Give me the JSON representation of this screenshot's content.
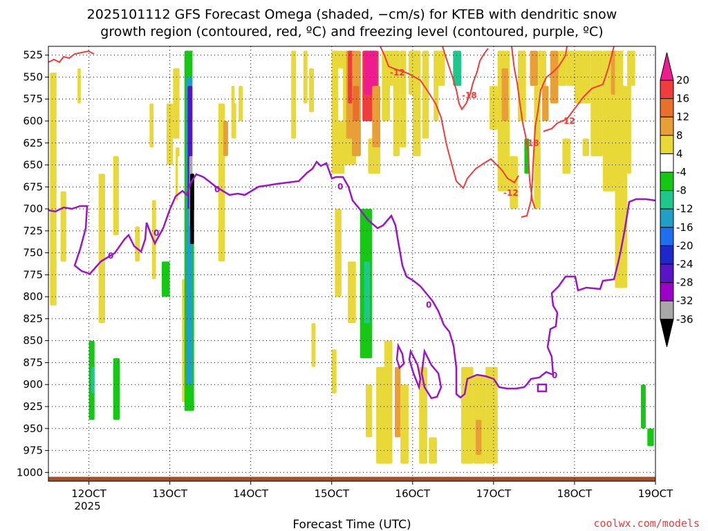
{
  "chart_data": {
    "type": "heatmap",
    "title_lines": [
      "2025101112 GFS Forecast Omega (shaded, −cm/s) for KTEB with dendritic snow",
      "growth region (contoured, red, ºC) and freezing level (contoured, purple, ºC)"
    ],
    "xlabel": "Forecast Time (UTC)",
    "credit": "coolwx.com/models",
    "x_ticks": [
      {
        "label": "12OCT",
        "sub": "2025",
        "value": 12
      },
      {
        "label": "13OCT",
        "sub": "",
        "value": 13
      },
      {
        "label": "14OCT",
        "sub": "",
        "value": 14
      },
      {
        "label": "15OCT",
        "sub": "",
        "value": 15
      },
      {
        "label": "16OCT",
        "sub": "",
        "value": 16
      },
      {
        "label": "17OCT",
        "sub": "",
        "value": 17
      },
      {
        "label": "18OCT",
        "sub": "",
        "value": 18
      },
      {
        "label": "19OCT",
        "sub": "",
        "value": 19
      }
    ],
    "x_range": [
      11.5,
      19.0
    ],
    "y_ticks": [
      "525",
      "550",
      "575",
      "600",
      "625",
      "650",
      "675",
      "700",
      "725",
      "750",
      "775",
      "800",
      "825",
      "850",
      "875",
      "900",
      "925",
      "950",
      "975",
      "1000"
    ],
    "y_range": [
      1010,
      515
    ],
    "colorbar": {
      "labels": [
        "20",
        "16",
        "12",
        "8",
        "4",
        "-4",
        "-8",
        "-12",
        "-16",
        "-20",
        "-24",
        "-28",
        "-32",
        "-36"
      ],
      "colors": [
        "#ee1c8e",
        "#f03c3c",
        "#e8702a",
        "#e8a036",
        "#e8d838",
        "#ffffff",
        "#14c814",
        "#1ec88c",
        "#1ea0c8",
        "#1e6ef0",
        "#1e28c8",
        "#5a14c8",
        "#9c00c8",
        "#a8a8a8",
        "#000000"
      ]
    },
    "contours": {
      "freezing_level_label": "0",
      "dgz_labels": [
        "-12",
        "-18"
      ]
    },
    "shaded_cells": [
      {
        "x0": 11.52,
        "x1": 11.62,
        "p0": 545,
        "p1": 810,
        "c": 4
      },
      {
        "x0": 11.6,
        "x1": 11.7,
        "p0": 540,
        "p1": 880,
        "c": 5
      },
      {
        "x0": 11.65,
        "x1": 11.72,
        "p0": 680,
        "p1": 760,
        "c": 4
      },
      {
        "x0": 11.8,
        "x1": 11.87,
        "p0": 540,
        "p1": 620,
        "c": 5
      },
      {
        "x0": 11.86,
        "x1": 11.9,
        "p0": 540,
        "p1": 580,
        "c": 4
      },
      {
        "x0": 11.92,
        "x1": 11.98,
        "p0": 560,
        "p1": 720,
        "c": 5
      },
      {
        "x0": 11.95,
        "x1": 12.07,
        "p0": 780,
        "p1": 980,
        "c": 5
      },
      {
        "x0": 12.0,
        "x1": 12.07,
        "p0": 850,
        "p1": 940,
        "c": 6
      },
      {
        "x0": 12.03,
        "x1": 12.07,
        "p0": 880,
        "p1": 910,
        "c": 7
      },
      {
        "x0": 12.1,
        "x1": 12.17,
        "p0": 520,
        "p1": 620,
        "c": 5
      },
      {
        "x0": 12.12,
        "x1": 12.2,
        "p0": 660,
        "p1": 830,
        "c": 4
      },
      {
        "x0": 12.22,
        "x1": 12.27,
        "p0": 520,
        "p1": 560,
        "c": 5
      },
      {
        "x0": 12.3,
        "x1": 12.37,
        "p0": 640,
        "p1": 730,
        "c": 4
      },
      {
        "x0": 12.3,
        "x1": 12.4,
        "p0": 760,
        "p1": 980,
        "c": 5
      },
      {
        "x0": 12.3,
        "x1": 12.38,
        "p0": 870,
        "p1": 940,
        "c": 6
      },
      {
        "x0": 12.37,
        "x1": 12.44,
        "p0": 520,
        "p1": 620,
        "c": 5
      },
      {
        "x0": 12.48,
        "x1": 12.56,
        "p0": 600,
        "p1": 650,
        "c": 5
      },
      {
        "x0": 12.56,
        "x1": 12.62,
        "p0": 520,
        "p1": 560,
        "c": 5
      },
      {
        "x0": 12.57,
        "x1": 12.63,
        "p0": 720,
        "p1": 760,
        "c": 4
      },
      {
        "x0": 12.6,
        "x1": 12.67,
        "p0": 520,
        "p1": 610,
        "c": 5
      },
      {
        "x0": 12.67,
        "x1": 12.73,
        "p0": 520,
        "p1": 580,
        "c": 5
      },
      {
        "x0": 12.6,
        "x1": 12.7,
        "p0": 680,
        "p1": 720,
        "c": 5
      },
      {
        "x0": 12.7,
        "x1": 12.76,
        "p0": 560,
        "p1": 700,
        "c": 5
      },
      {
        "x0": 12.75,
        "x1": 12.8,
        "p0": 580,
        "p1": 630,
        "c": 4
      },
      {
        "x0": 12.78,
        "x1": 12.83,
        "p0": 690,
        "p1": 780,
        "c": 4
      },
      {
        "x0": 12.8,
        "x1": 12.86,
        "p0": 560,
        "p1": 620,
        "c": 5
      },
      {
        "x0": 12.86,
        "x1": 12.92,
        "p0": 610,
        "p1": 640,
        "c": 5
      },
      {
        "x0": 12.92,
        "x1": 12.98,
        "p0": 670,
        "p1": 730,
        "c": 5
      },
      {
        "x0": 12.83,
        "x1": 13.05,
        "p0": 740,
        "p1": 910,
        "c": 5
      },
      {
        "x0": 12.9,
        "x1": 13.0,
        "p0": 760,
        "p1": 800,
        "c": 6
      },
      {
        "x0": 12.96,
        "x1": 13.04,
        "p0": 580,
        "p1": 650,
        "c": 4
      },
      {
        "x0": 12.95,
        "x1": 13.05,
        "p0": 870,
        "p1": 950,
        "c": 5
      },
      {
        "x0": 13.04,
        "x1": 13.12,
        "p0": 540,
        "p1": 620,
        "c": 4
      },
      {
        "x0": 13.07,
        "x1": 13.14,
        "p0": 630,
        "p1": 690,
        "c": 4
      },
      {
        "x0": 13.1,
        "x1": 13.2,
        "p0": 640,
        "p1": 700,
        "c": 5
      },
      {
        "x0": 13.12,
        "x1": 13.22,
        "p0": 560,
        "p1": 640,
        "c": 5
      },
      {
        "x0": 13.15,
        "x1": 13.26,
        "p0": 650,
        "p1": 770,
        "c": 5
      },
      {
        "x0": 13.15,
        "x1": 13.2,
        "p0": 520,
        "p1": 580,
        "c": 5
      },
      {
        "x0": 13.15,
        "x1": 13.26,
        "p0": 780,
        "p1": 920,
        "c": 4
      },
      {
        "x0": 13.18,
        "x1": 13.3,
        "p0": 520,
        "p1": 930,
        "c": 6
      },
      {
        "x0": 13.2,
        "x1": 13.28,
        "p0": 550,
        "p1": 900,
        "c": 8
      },
      {
        "x0": 13.22,
        "x1": 13.28,
        "p0": 560,
        "p1": 700,
        "c": 11
      },
      {
        "x0": 13.24,
        "x1": 13.3,
        "p0": 640,
        "p1": 720,
        "c": 13
      },
      {
        "x0": 13.25,
        "x1": 13.3,
        "p0": 660,
        "p1": 740,
        "c": 14
      },
      {
        "x0": 13.28,
        "x1": 13.36,
        "p0": 520,
        "p1": 660,
        "c": 5
      },
      {
        "x0": 13.3,
        "x1": 13.4,
        "p0": 700,
        "p1": 920,
        "c": 5
      },
      {
        "x0": 13.37,
        "x1": 13.45,
        "p0": 560,
        "p1": 660,
        "c": 5
      },
      {
        "x0": 13.44,
        "x1": 13.5,
        "p0": 600,
        "p1": 650,
        "c": 5
      },
      {
        "x0": 13.5,
        "x1": 13.56,
        "p0": 620,
        "p1": 700,
        "c": 5
      },
      {
        "x0": 13.52,
        "x1": 13.6,
        "p0": 730,
        "p1": 780,
        "c": 5
      },
      {
        "x0": 13.55,
        "x1": 13.62,
        "p0": 520,
        "p1": 580,
        "c": 5
      },
      {
        "x0": 13.58,
        "x1": 13.64,
        "p0": 660,
        "p1": 800,
        "c": 5
      },
      {
        "x0": 13.6,
        "x1": 13.68,
        "p0": 580,
        "p1": 760,
        "c": 4
      },
      {
        "x0": 13.62,
        "x1": 13.7,
        "p0": 540,
        "p1": 580,
        "c": 5
      },
      {
        "x0": 13.66,
        "x1": 13.72,
        "p0": 600,
        "p1": 640,
        "c": 3
      },
      {
        "x0": 13.7,
        "x1": 13.78,
        "p0": 640,
        "p1": 760,
        "c": 5
      },
      {
        "x0": 13.74,
        "x1": 13.82,
        "p0": 640,
        "p1": 850,
        "c": 5
      },
      {
        "x0": 13.76,
        "x1": 13.82,
        "p0": 560,
        "p1": 620,
        "c": 4
      },
      {
        "x0": 13.8,
        "x1": 13.86,
        "p0": 540,
        "p1": 580,
        "c": 5
      },
      {
        "x0": 13.85,
        "x1": 13.9,
        "p0": 560,
        "p1": 600,
        "c": 4
      },
      {
        "x0": 14.2,
        "x1": 14.26,
        "p0": 540,
        "p1": 580,
        "c": 5
      },
      {
        "x0": 14.5,
        "x1": 14.56,
        "p0": 520,
        "p1": 620,
        "c": 4
      },
      {
        "x0": 14.65,
        "x1": 14.7,
        "p0": 520,
        "p1": 580,
        "c": 4
      },
      {
        "x0": 14.72,
        "x1": 14.78,
        "p0": 540,
        "p1": 590,
        "c": 4
      },
      {
        "x0": 14.75,
        "x1": 14.8,
        "p0": 830,
        "p1": 880,
        "c": 4
      },
      {
        "x0": 15.0,
        "x1": 15.06,
        "p0": 860,
        "p1": 910,
        "c": 4
      },
      {
        "x0": 15.0,
        "x1": 15.16,
        "p0": 520,
        "p1": 660,
        "c": 4
      },
      {
        "x0": 15.04,
        "x1": 15.12,
        "p0": 700,
        "p1": 800,
        "c": 4
      },
      {
        "x0": 15.08,
        "x1": 15.14,
        "p0": 540,
        "p1": 600,
        "c": 5
      },
      {
        "x0": 15.15,
        "x1": 15.3,
        "p0": 520,
        "p1": 650,
        "c": 4
      },
      {
        "x0": 15.18,
        "x1": 15.3,
        "p0": 520,
        "p1": 620,
        "c": 3
      },
      {
        "x0": 15.2,
        "x1": 15.27,
        "p0": 520,
        "p1": 580,
        "c": 1
      },
      {
        "x0": 15.2,
        "x1": 15.3,
        "p0": 760,
        "p1": 830,
        "c": 4
      },
      {
        "x0": 15.25,
        "x1": 15.36,
        "p0": 520,
        "p1": 640,
        "c": 3
      },
      {
        "x0": 15.26,
        "x1": 15.34,
        "p0": 560,
        "p1": 600,
        "c": 2
      },
      {
        "x0": 15.3,
        "x1": 15.42,
        "p0": 740,
        "p1": 880,
        "c": 5
      },
      {
        "x0": 15.35,
        "x1": 15.5,
        "p0": 700,
        "p1": 870,
        "c": 6
      },
      {
        "x0": 15.4,
        "x1": 15.47,
        "p0": 760,
        "p1": 830,
        "c": 7
      },
      {
        "x0": 15.42,
        "x1": 15.5,
        "p0": 900,
        "p1": 960,
        "c": 4
      },
      {
        "x0": 15.38,
        "x1": 15.58,
        "p0": 520,
        "p1": 600,
        "c": 1
      },
      {
        "x0": 15.4,
        "x1": 15.56,
        "p0": 520,
        "p1": 570,
        "c": 0
      },
      {
        "x0": 15.45,
        "x1": 15.6,
        "p0": 620,
        "p1": 660,
        "c": 4
      },
      {
        "x0": 15.5,
        "x1": 15.6,
        "p0": 560,
        "p1": 630,
        "c": 3
      },
      {
        "x0": 15.55,
        "x1": 15.7,
        "p0": 880,
        "p1": 990,
        "c": 4
      },
      {
        "x0": 15.62,
        "x1": 15.72,
        "p0": 520,
        "p1": 600,
        "c": 4
      },
      {
        "x0": 15.65,
        "x1": 15.75,
        "p0": 850,
        "p1": 990,
        "c": 4
      },
      {
        "x0": 15.7,
        "x1": 15.8,
        "p0": 520,
        "p1": 560,
        "c": 4
      },
      {
        "x0": 15.76,
        "x1": 15.84,
        "p0": 520,
        "p1": 640,
        "c": 4
      },
      {
        "x0": 15.78,
        "x1": 15.85,
        "p0": 880,
        "p1": 960,
        "c": 3
      },
      {
        "x0": 15.84,
        "x1": 15.92,
        "p0": 520,
        "p1": 630,
        "c": 4
      },
      {
        "x0": 15.85,
        "x1": 15.95,
        "p0": 900,
        "p1": 990,
        "c": 4
      },
      {
        "x0": 15.95,
        "x1": 16.05,
        "p0": 520,
        "p1": 570,
        "c": 4
      },
      {
        "x0": 16.0,
        "x1": 16.1,
        "p0": 520,
        "p1": 640,
        "c": 4
      },
      {
        "x0": 16.08,
        "x1": 16.18,
        "p0": 880,
        "p1": 990,
        "c": 4
      },
      {
        "x0": 16.12,
        "x1": 16.2,
        "p0": 520,
        "p1": 620,
        "c": 4
      },
      {
        "x0": 16.2,
        "x1": 16.3,
        "p0": 960,
        "p1": 990,
        "c": 4
      },
      {
        "x0": 16.26,
        "x1": 16.32,
        "p0": 520,
        "p1": 600,
        "c": 4
      },
      {
        "x0": 16.3,
        "x1": 16.4,
        "p0": 520,
        "p1": 560,
        "c": 4
      },
      {
        "x0": 16.35,
        "x1": 16.45,
        "p0": 760,
        "p1": 880,
        "c": 5
      },
      {
        "x0": 16.4,
        "x1": 16.5,
        "p0": 520,
        "p1": 620,
        "c": 5
      },
      {
        "x0": 16.45,
        "x1": 16.55,
        "p0": 640,
        "p1": 900,
        "c": 5
      },
      {
        "x0": 16.5,
        "x1": 16.6,
        "p0": 520,
        "p1": 560,
        "c": 7
      },
      {
        "x0": 16.55,
        "x1": 16.65,
        "p0": 570,
        "p1": 610,
        "c": 5
      },
      {
        "x0": 16.6,
        "x1": 16.7,
        "p0": 520,
        "p1": 660,
        "c": 5
      },
      {
        "x0": 16.6,
        "x1": 16.75,
        "p0": 880,
        "p1": 990,
        "c": 4
      },
      {
        "x0": 16.7,
        "x1": 16.8,
        "p0": 520,
        "p1": 600,
        "c": 5
      },
      {
        "x0": 16.75,
        "x1": 16.9,
        "p0": 890,
        "p1": 990,
        "c": 4
      },
      {
        "x0": 16.78,
        "x1": 16.85,
        "p0": 940,
        "p1": 980,
        "c": 3
      },
      {
        "x0": 16.85,
        "x1": 16.95,
        "p0": 520,
        "p1": 600,
        "c": 5
      },
      {
        "x0": 16.9,
        "x1": 17.05,
        "p0": 880,
        "p1": 990,
        "c": 4
      },
      {
        "x0": 16.95,
        "x1": 17.05,
        "p0": 560,
        "p1": 610,
        "c": 4
      },
      {
        "x0": 17.05,
        "x1": 17.2,
        "p0": 520,
        "p1": 680,
        "c": 4
      },
      {
        "x0": 17.1,
        "x1": 17.18,
        "p0": 540,
        "p1": 600,
        "c": 3
      },
      {
        "x0": 17.2,
        "x1": 17.3,
        "p0": 640,
        "p1": 700,
        "c": 4
      },
      {
        "x0": 17.3,
        "x1": 17.4,
        "p0": 520,
        "p1": 600,
        "c": 4
      },
      {
        "x0": 17.35,
        "x1": 17.45,
        "p0": 600,
        "p1": 690,
        "c": 5
      },
      {
        "x0": 17.38,
        "x1": 17.44,
        "p0": 620,
        "p1": 660,
        "c": 6
      },
      {
        "x0": 17.45,
        "x1": 17.55,
        "p0": 520,
        "p1": 560,
        "c": 3
      },
      {
        "x0": 17.5,
        "x1": 17.58,
        "p0": 560,
        "p1": 700,
        "c": 4
      },
      {
        "x0": 17.55,
        "x1": 17.65,
        "p0": 520,
        "p1": 560,
        "c": 4
      },
      {
        "x0": 17.6,
        "x1": 17.7,
        "p0": 600,
        "p1": 720,
        "c": 5
      },
      {
        "x0": 17.6,
        "x1": 17.68,
        "p0": 560,
        "p1": 600,
        "c": 3
      },
      {
        "x0": 17.7,
        "x1": 17.8,
        "p0": 520,
        "p1": 580,
        "c": 3
      },
      {
        "x0": 17.8,
        "x1": 17.9,
        "p0": 520,
        "p1": 560,
        "c": 4
      },
      {
        "x0": 17.9,
        "x1": 18.0,
        "p0": 520,
        "p1": 560,
        "c": 4
      },
      {
        "x0": 17.85,
        "x1": 17.95,
        "p0": 620,
        "p1": 660,
        "c": 4
      },
      {
        "x0": 18.0,
        "x1": 18.2,
        "p0": 520,
        "p1": 580,
        "c": 4
      },
      {
        "x0": 18.1,
        "x1": 18.18,
        "p0": 620,
        "p1": 640,
        "c": 4
      },
      {
        "x0": 18.2,
        "x1": 18.35,
        "p0": 520,
        "p1": 640,
        "c": 4
      },
      {
        "x0": 18.35,
        "x1": 18.5,
        "p0": 520,
        "p1": 680,
        "c": 4
      },
      {
        "x0": 18.45,
        "x1": 18.55,
        "p0": 520,
        "p1": 570,
        "c": 3
      },
      {
        "x0": 18.5,
        "x1": 18.65,
        "p0": 520,
        "p1": 790,
        "c": 4
      },
      {
        "x0": 18.62,
        "x1": 18.7,
        "p0": 520,
        "p1": 660,
        "c": 4
      },
      {
        "x0": 18.6,
        "x1": 18.68,
        "p0": 520,
        "p1": 560,
        "c": 5
      },
      {
        "x0": 18.65,
        "x1": 18.75,
        "p0": 520,
        "p1": 560,
        "c": 4
      },
      {
        "x0": 18.8,
        "x1": 18.9,
        "p0": 860,
        "p1": 990,
        "c": 5
      },
      {
        "x0": 18.82,
        "x1": 18.88,
        "p0": 900,
        "p1": 950,
        "c": 6
      },
      {
        "x0": 18.9,
        "x1": 18.98,
        "p0": 950,
        "p1": 970,
        "c": 6
      }
    ],
    "ground_fill": {
      "color": "#a0522d",
      "p_top": 1005,
      "p_bottom": 1010
    }
  }
}
